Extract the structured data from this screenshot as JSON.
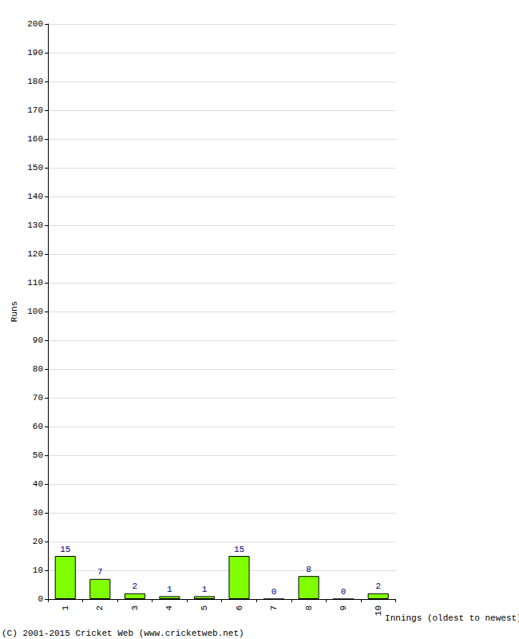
{
  "chart_data": {
    "type": "bar",
    "xlabel": "Innings (oldest to newest)",
    "ylabel": "Runs",
    "annotations": [
      "(C) 2001-2015 Cricket Web (www.cricketweb.net)"
    ],
    "categories": [
      "1",
      "2",
      "3",
      "4",
      "5",
      "6",
      "7",
      "8",
      "9",
      "10"
    ],
    "values": [
      15,
      7,
      2,
      1,
      1,
      15,
      0,
      8,
      0,
      2
    ],
    "color": "#80ff00",
    "ylim": [
      0,
      200
    ],
    "yticks": [
      0,
      10,
      20,
      30,
      40,
      50,
      60,
      70,
      80,
      90,
      100,
      110,
      120,
      130,
      140,
      150,
      160,
      170,
      180,
      190,
      200
    ],
    "grid": true,
    "data_labels": true
  }
}
